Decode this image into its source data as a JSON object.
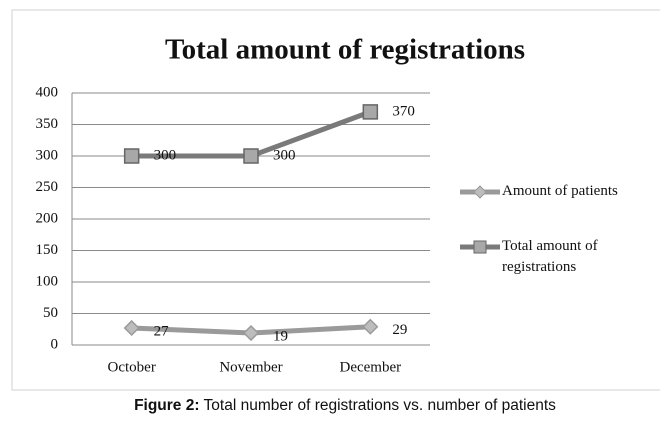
{
  "chart_data": {
    "type": "line",
    "title": "Total amount of registrations",
    "categories": [
      "October",
      "November",
      "December"
    ],
    "series": [
      {
        "name": "Amount of patients",
        "color": "#9a9a9a",
        "marker": "diamond",
        "values": [
          27,
          19,
          29
        ]
      },
      {
        "name": "Total amount of registrations",
        "color": "#7a7a7a",
        "marker": "square",
        "values": [
          300,
          300,
          370
        ]
      }
    ],
    "ylim": [
      0,
      400
    ],
    "yticks": [
      0,
      50,
      100,
      150,
      200,
      250,
      300,
      350,
      400
    ],
    "grid": true,
    "legend": "right"
  },
  "caption": {
    "label": "Figure 2:",
    "text": "Total number of registrations vs. number of patients"
  }
}
